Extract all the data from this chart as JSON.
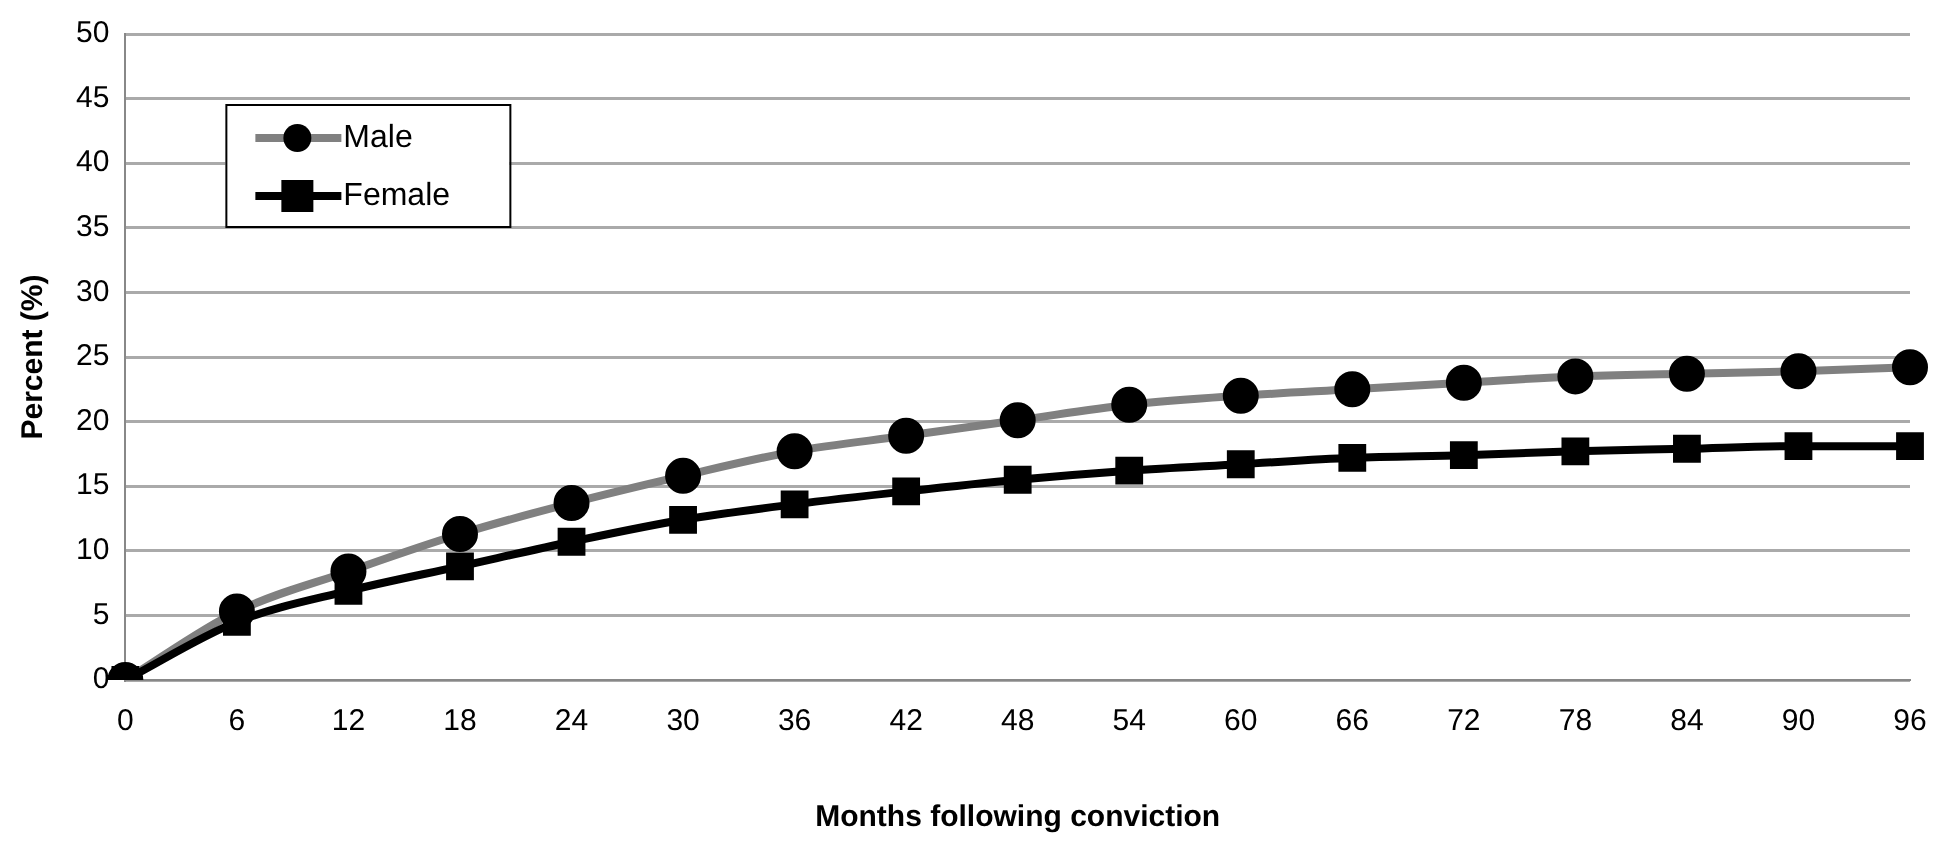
{
  "chart_data": {
    "type": "line",
    "xlabel": "Months following conviction",
    "ylabel": "Percent (%)",
    "categories": [
      "0",
      "6",
      "12",
      "18",
      "24",
      "30",
      "36",
      "42",
      "48",
      "54",
      "60",
      "66",
      "72",
      "78",
      "84",
      "90",
      "96"
    ],
    "series": [
      {
        "name": "Male",
        "color": "#808080",
        "marker": "circle",
        "values": [
          0,
          5.3,
          8.4,
          11.3,
          13.7,
          15.8,
          17.7,
          18.9,
          20.1,
          21.3,
          22.0,
          22.5,
          23.0,
          23.5,
          23.7,
          23.9,
          24.2
        ]
      },
      {
        "name": "Female",
        "color": "#000000",
        "marker": "square",
        "values": [
          0,
          4.5,
          6.9,
          8.8,
          10.7,
          12.4,
          13.6,
          14.6,
          15.5,
          16.2,
          16.7,
          17.2,
          17.4,
          17.7,
          17.9,
          18.1,
          18.1
        ]
      }
    ],
    "ylim": [
      0,
      50
    ],
    "yticks": [
      0,
      5,
      10,
      15,
      20,
      25,
      30,
      35,
      40,
      45,
      50
    ],
    "grid": "y",
    "legend": "top left"
  }
}
